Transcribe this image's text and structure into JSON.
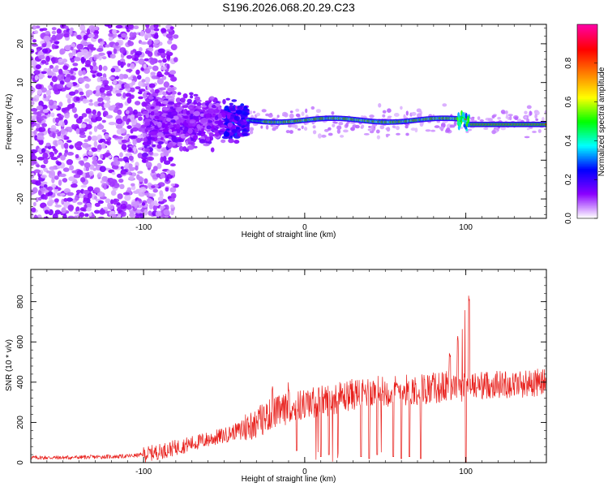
{
  "title": "S196.2026.068.20.29.C23",
  "chart_data": [
    {
      "type": "heatmap",
      "title": "S196.2026.068.20.29.C23",
      "xlabel": "Height of straight line (km)",
      "ylabel": "Frequency (Hz)",
      "xlim": [
        -170,
        150
      ],
      "ylim": [
        -25,
        25
      ],
      "x_ticks": [
        -100,
        0,
        100
      ],
      "y_ticks": [
        -20,
        -10,
        0,
        10,
        20
      ],
      "colorbar": {
        "label": "Normalized spectral amplitude",
        "range": [
          0,
          1
        ],
        "ticks": [
          0.0,
          0.2,
          0.4,
          0.6,
          0.8
        ],
        "colormap": [
          "#ffffff",
          "#8a00ff",
          "#0000ff",
          "#00ffff",
          "#00ff00",
          "#ffff00",
          "#ff7f00",
          "#ff0000",
          "#ff00a0"
        ]
      },
      "zones": [
        {
          "x_from": -170,
          "x_to": -100,
          "freq_spread_hz": 25,
          "amplitude": 0.05
        },
        {
          "x_from": -100,
          "x_to": -35,
          "freq_spread_hz": 10,
          "amplitude": 0.1
        },
        {
          "x_from": -35,
          "x_to": 100,
          "freq_spread_hz": 2,
          "amplitude": 0.95
        },
        {
          "x_from": 100,
          "x_to": 150,
          "freq_spread_hz": 1,
          "amplitude": 0.95
        }
      ]
    },
    {
      "type": "line",
      "xlabel": "Height of straight line (km)",
      "ylabel": "SNR (10 * v/v)",
      "xlim": [
        -170,
        150
      ],
      "ylim": [
        0,
        960
      ],
      "x_ticks": [
        -100,
        0,
        100
      ],
      "y_ticks": [
        0,
        200,
        400,
        600,
        800
      ],
      "series": [
        {
          "name": "SNR",
          "color": "#e8201c",
          "x": [
            -170,
            -150,
            -130,
            -110,
            -100,
            -90,
            -80,
            -70,
            -60,
            -50,
            -40,
            -30,
            -20,
            -10,
            0,
            10,
            20,
            30,
            40,
            50,
            60,
            70,
            80,
            90,
            100,
            110,
            120,
            130,
            140,
            150
          ],
          "y": [
            25,
            25,
            28,
            32,
            40,
            55,
            75,
            95,
            115,
            135,
            165,
            200,
            245,
            270,
            290,
            305,
            320,
            340,
            355,
            355,
            360,
            365,
            370,
            380,
            380,
            385,
            390,
            390,
            395,
            400
          ],
          "spikes_up": [
            [
              -20,
              400
            ],
            [
              -10,
              420
            ],
            [
              90,
              600
            ],
            [
              95,
              640
            ],
            [
              100,
              960
            ],
            [
              102,
              860
            ]
          ],
          "dips": [
            [
              -5,
              60
            ],
            [
              10,
              30
            ],
            [
              15,
              40
            ],
            [
              35,
              30
            ],
            [
              40,
              20
            ],
            [
              45,
              40
            ],
            [
              55,
              30
            ],
            [
              60,
              20
            ],
            [
              65,
              30
            ],
            [
              72,
              20
            ],
            [
              100,
              0
            ]
          ]
        }
      ]
    }
  ]
}
